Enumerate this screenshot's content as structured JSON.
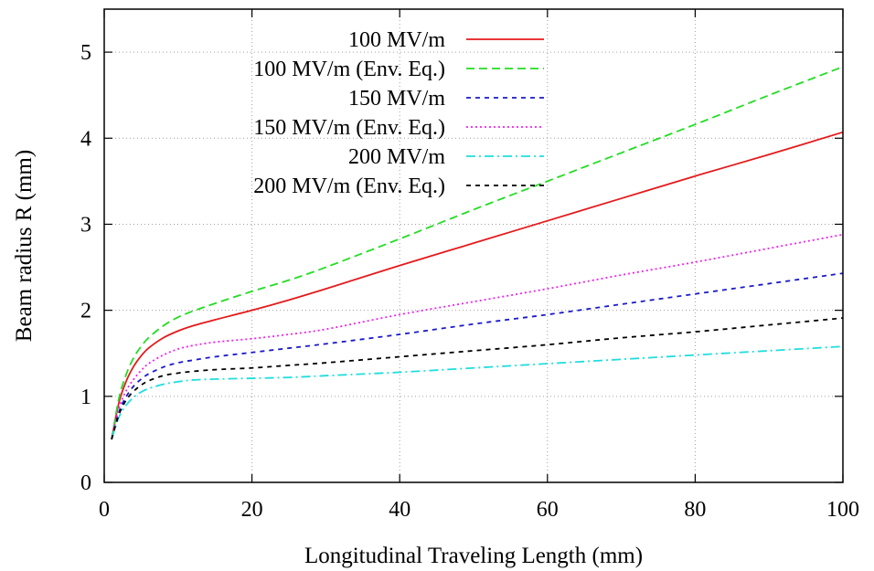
{
  "chart_data": {
    "type": "line",
    "xlabel": "Longitudinal Traveling Length (mm)",
    "ylabel": "Beam radius R (mm)",
    "xlim": [
      0,
      100
    ],
    "ylim": [
      0,
      5.5
    ],
    "xticks": [
      0,
      20,
      40,
      60,
      80,
      100
    ],
    "yticks": [
      0,
      1,
      2,
      3,
      4,
      5
    ],
    "grid": true,
    "legend_position": "top-left",
    "series": [
      {
        "name": "100 MV/m",
        "color": "#e41a1c",
        "dash": "solid",
        "x": [
          1,
          2,
          3,
          4,
          5,
          6,
          8,
          10,
          12,
          15,
          20,
          25,
          30,
          40,
          50,
          60,
          70,
          80,
          90,
          100
        ],
        "y": [
          0.5,
          0.93,
          1.18,
          1.35,
          1.47,
          1.56,
          1.68,
          1.76,
          1.82,
          1.89,
          2.0,
          2.12,
          2.25,
          2.52,
          2.78,
          3.04,
          3.3,
          3.56,
          3.81,
          4.07
        ]
      },
      {
        "name": "100 MV/m (Env. Eq.)",
        "color": "#22dd22",
        "dash": "dashed",
        "x": [
          1,
          2,
          3,
          4,
          5,
          6,
          8,
          10,
          12,
          15,
          20,
          25,
          30,
          40,
          50,
          60,
          70,
          80,
          90,
          100
        ],
        "y": [
          0.5,
          0.98,
          1.26,
          1.45,
          1.58,
          1.68,
          1.82,
          1.92,
          1.99,
          2.08,
          2.22,
          2.35,
          2.5,
          2.83,
          3.17,
          3.5,
          3.83,
          4.16,
          4.5,
          4.83
        ]
      },
      {
        "name": "150 MV/m",
        "color": "#1a1acc",
        "dash": "short-dash",
        "x": [
          1,
          2,
          3,
          4,
          5,
          6,
          8,
          10,
          12,
          15,
          20,
          25,
          30,
          40,
          50,
          60,
          70,
          80,
          90,
          100
        ],
        "y": [
          0.5,
          0.82,
          1.0,
          1.12,
          1.2,
          1.26,
          1.34,
          1.39,
          1.42,
          1.46,
          1.51,
          1.56,
          1.61,
          1.72,
          1.84,
          1.95,
          2.07,
          2.19,
          2.31,
          2.43
        ]
      },
      {
        "name": "150 MV/m (Env. Eq.)",
        "color": "#ee22ee",
        "dash": "dotted",
        "x": [
          1,
          2,
          3,
          4,
          5,
          6,
          8,
          10,
          12,
          15,
          20,
          25,
          30,
          40,
          50,
          60,
          70,
          80,
          90,
          100
        ],
        "y": [
          0.5,
          0.86,
          1.07,
          1.2,
          1.3,
          1.38,
          1.48,
          1.55,
          1.59,
          1.63,
          1.67,
          1.72,
          1.78,
          1.95,
          2.1,
          2.25,
          2.41,
          2.56,
          2.72,
          2.88
        ]
      },
      {
        "name": "200 MV/m",
        "color": "#22dddd",
        "dash": "dash-dot",
        "x": [
          1,
          2,
          3,
          4,
          5,
          6,
          8,
          10,
          12,
          15,
          20,
          25,
          30,
          40,
          50,
          60,
          70,
          80,
          90,
          100
        ],
        "y": [
          0.5,
          0.76,
          0.9,
          0.99,
          1.05,
          1.09,
          1.14,
          1.17,
          1.19,
          1.2,
          1.21,
          1.22,
          1.24,
          1.28,
          1.33,
          1.38,
          1.43,
          1.48,
          1.53,
          1.58
        ]
      },
      {
        "name": "200 MV/m (Env. Eq.)",
        "color": "#000000",
        "dash": "short-dash",
        "x": [
          1,
          2,
          3,
          4,
          5,
          6,
          8,
          10,
          12,
          15,
          20,
          25,
          30,
          40,
          50,
          60,
          70,
          80,
          90,
          100
        ],
        "y": [
          0.5,
          0.79,
          0.96,
          1.06,
          1.13,
          1.18,
          1.24,
          1.27,
          1.29,
          1.31,
          1.33,
          1.36,
          1.39,
          1.46,
          1.53,
          1.6,
          1.68,
          1.75,
          1.83,
          1.91
        ]
      }
    ]
  }
}
